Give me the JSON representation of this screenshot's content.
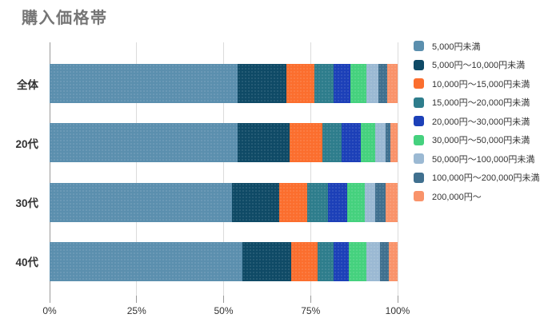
{
  "title": "購入価格帯",
  "chart_data": {
    "type": "bar",
    "orientation": "horizontal",
    "stacked": true,
    "title": "購入価格帯",
    "categories": [
      "全体",
      "20代",
      "30代",
      "40代"
    ],
    "series": [
      {
        "name": "5,000円未満",
        "color": "#5B8FAE",
        "values": [
          54,
          54,
          52.5,
          55.5
        ]
      },
      {
        "name": "5,000円〜10,000円未満",
        "color": "#0F4A66",
        "values": [
          14,
          15,
          13.5,
          14
        ]
      },
      {
        "name": "10,000円〜15,000円未満",
        "color": "#FB6E2E",
        "values": [
          8,
          9.5,
          8,
          7.5
        ]
      },
      {
        "name": "15,000円〜20,000円未満",
        "color": "#2E7D8C",
        "values": [
          5.5,
          5.5,
          6,
          4.5
        ]
      },
      {
        "name": "20,000円〜30,000円未満",
        "color": "#1C40B8",
        "values": [
          5,
          5.5,
          5.5,
          4.5
        ]
      },
      {
        "name": "30,000円〜50,000円未満",
        "color": "#45D17E",
        "values": [
          4.5,
          4,
          5,
          5
        ]
      },
      {
        "name": "50,000円〜100,000円未満",
        "color": "#9BB9D3",
        "values": [
          3.5,
          3,
          3,
          4
        ]
      },
      {
        "name": "100,000円〜200,000円未満",
        "color": "#40708F",
        "values": [
          2.5,
          1.5,
          3,
          2.5
        ]
      },
      {
        "name": "200,000円〜",
        "color": "#F9936A",
        "values": [
          3,
          2,
          3.5,
          2.5
        ]
      }
    ],
    "x_axis": {
      "min": 0,
      "max": 100,
      "tick_labels": [
        "0%",
        "25%",
        "50%",
        "75%",
        "100%"
      ],
      "tick_values": [
        0,
        25,
        50,
        75,
        100
      ]
    },
    "legend_position": "right",
    "grid": true,
    "colors": {
      "background": "#ffffff",
      "title_text": "#757575",
      "axis_text": "#333333",
      "gridline": "#dcdcdc",
      "axis_line": "#9a9a9a"
    }
  }
}
